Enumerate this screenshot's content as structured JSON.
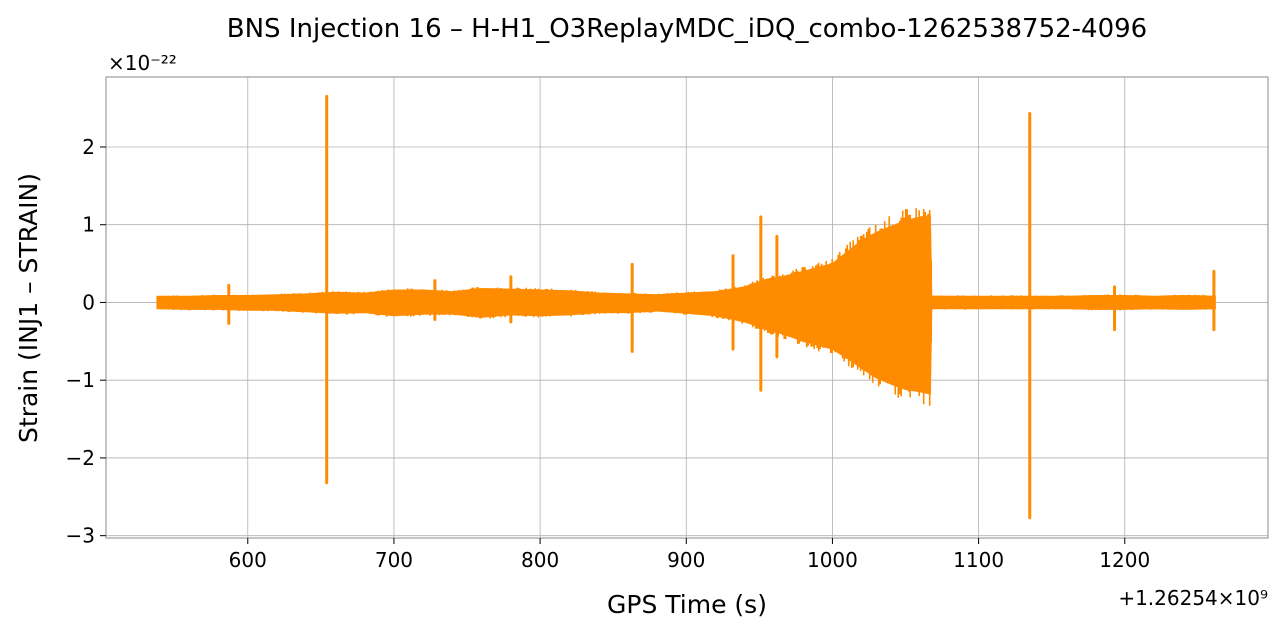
{
  "chart_data": {
    "type": "line",
    "title": "BNS Injection 16 – H-H1_O3ReplayMDC_iDQ_combo-1262538752-4096",
    "xlabel": "GPS Time (s)",
    "ylabel": "Strain (INJ1 – STRAIN)",
    "x_offset_label": "+1.26254×10⁹",
    "y_scale_label": "×10⁻²²",
    "xlim": [
      503,
      1298
    ],
    "ylim": [
      -3.03,
      2.9
    ],
    "x_ticks": [
      600,
      700,
      800,
      900,
      1000,
      1100,
      1200
    ],
    "x_tick_labels": [
      "600",
      "700",
      "800",
      "900",
      "1000",
      "1100",
      "1200"
    ],
    "y_ticks": [
      -3,
      -2,
      -1,
      0,
      1,
      2
    ],
    "y_tick_labels": [
      "−3",
      "−2",
      "−1",
      "0",
      "1",
      "2"
    ],
    "grid": true,
    "series": [
      {
        "color": "#ff8c00",
        "envelope": {
          "x": [
            538,
            560,
            580,
            600,
            620,
            640,
            660,
            680,
            700,
            720,
            740,
            760,
            780,
            800,
            820,
            840,
            860,
            880,
            900,
            920,
            940,
            955,
            965,
            980,
            990,
            1000,
            1010,
            1020,
            1030,
            1040,
            1050,
            1060,
            1067,
            1068,
            1080,
            1100,
            1120,
            1140,
            1160,
            1180,
            1200,
            1220,
            1240,
            1262
          ],
          "upper": [
            0.08,
            0.08,
            0.09,
            0.09,
            0.1,
            0.11,
            0.13,
            0.12,
            0.16,
            0.16,
            0.14,
            0.18,
            0.17,
            0.16,
            0.15,
            0.12,
            0.11,
            0.1,
            0.12,
            0.14,
            0.2,
            0.3,
            0.33,
            0.4,
            0.45,
            0.5,
            0.65,
            0.8,
            0.9,
            0.98,
            1.05,
            1.1,
            1.12,
            0.08,
            0.08,
            0.08,
            0.08,
            0.08,
            0.08,
            0.09,
            0.09,
            0.08,
            0.09,
            0.08
          ],
          "lower": [
            -0.08,
            -0.09,
            -0.09,
            -0.1,
            -0.1,
            -0.12,
            -0.14,
            -0.13,
            -0.17,
            -0.15,
            -0.15,
            -0.19,
            -0.16,
            -0.17,
            -0.16,
            -0.13,
            -0.13,
            -0.11,
            -0.14,
            -0.17,
            -0.25,
            -0.35,
            -0.4,
            -0.5,
            -0.55,
            -0.6,
            -0.72,
            -0.85,
            -0.97,
            -1.05,
            -1.12,
            -1.15,
            -1.18,
            -0.08,
            -0.08,
            -0.08,
            -0.08,
            -0.08,
            -0.08,
            -0.09,
            -0.09,
            -0.08,
            -0.09,
            -0.08
          ]
        },
        "spikes": [
          {
            "x": 587,
            "min": -0.27,
            "max": 0.22
          },
          {
            "x": 654,
            "min": -2.32,
            "max": 2.65
          },
          {
            "x": 728,
            "min": -0.22,
            "max": 0.28
          },
          {
            "x": 780,
            "min": -0.25,
            "max": 0.33
          },
          {
            "x": 863,
            "min": -0.63,
            "max": 0.49
          },
          {
            "x": 932,
            "min": -0.6,
            "max": 0.6
          },
          {
            "x": 951,
            "min": -1.13,
            "max": 1.1
          },
          {
            "x": 962,
            "min": -0.7,
            "max": 0.85
          },
          {
            "x": 1135,
            "min": -2.77,
            "max": 2.43
          },
          {
            "x": 1193,
            "min": -0.35,
            "max": 0.2
          },
          {
            "x": 1261,
            "min": -0.35,
            "max": 0.4
          }
        ]
      }
    ]
  }
}
